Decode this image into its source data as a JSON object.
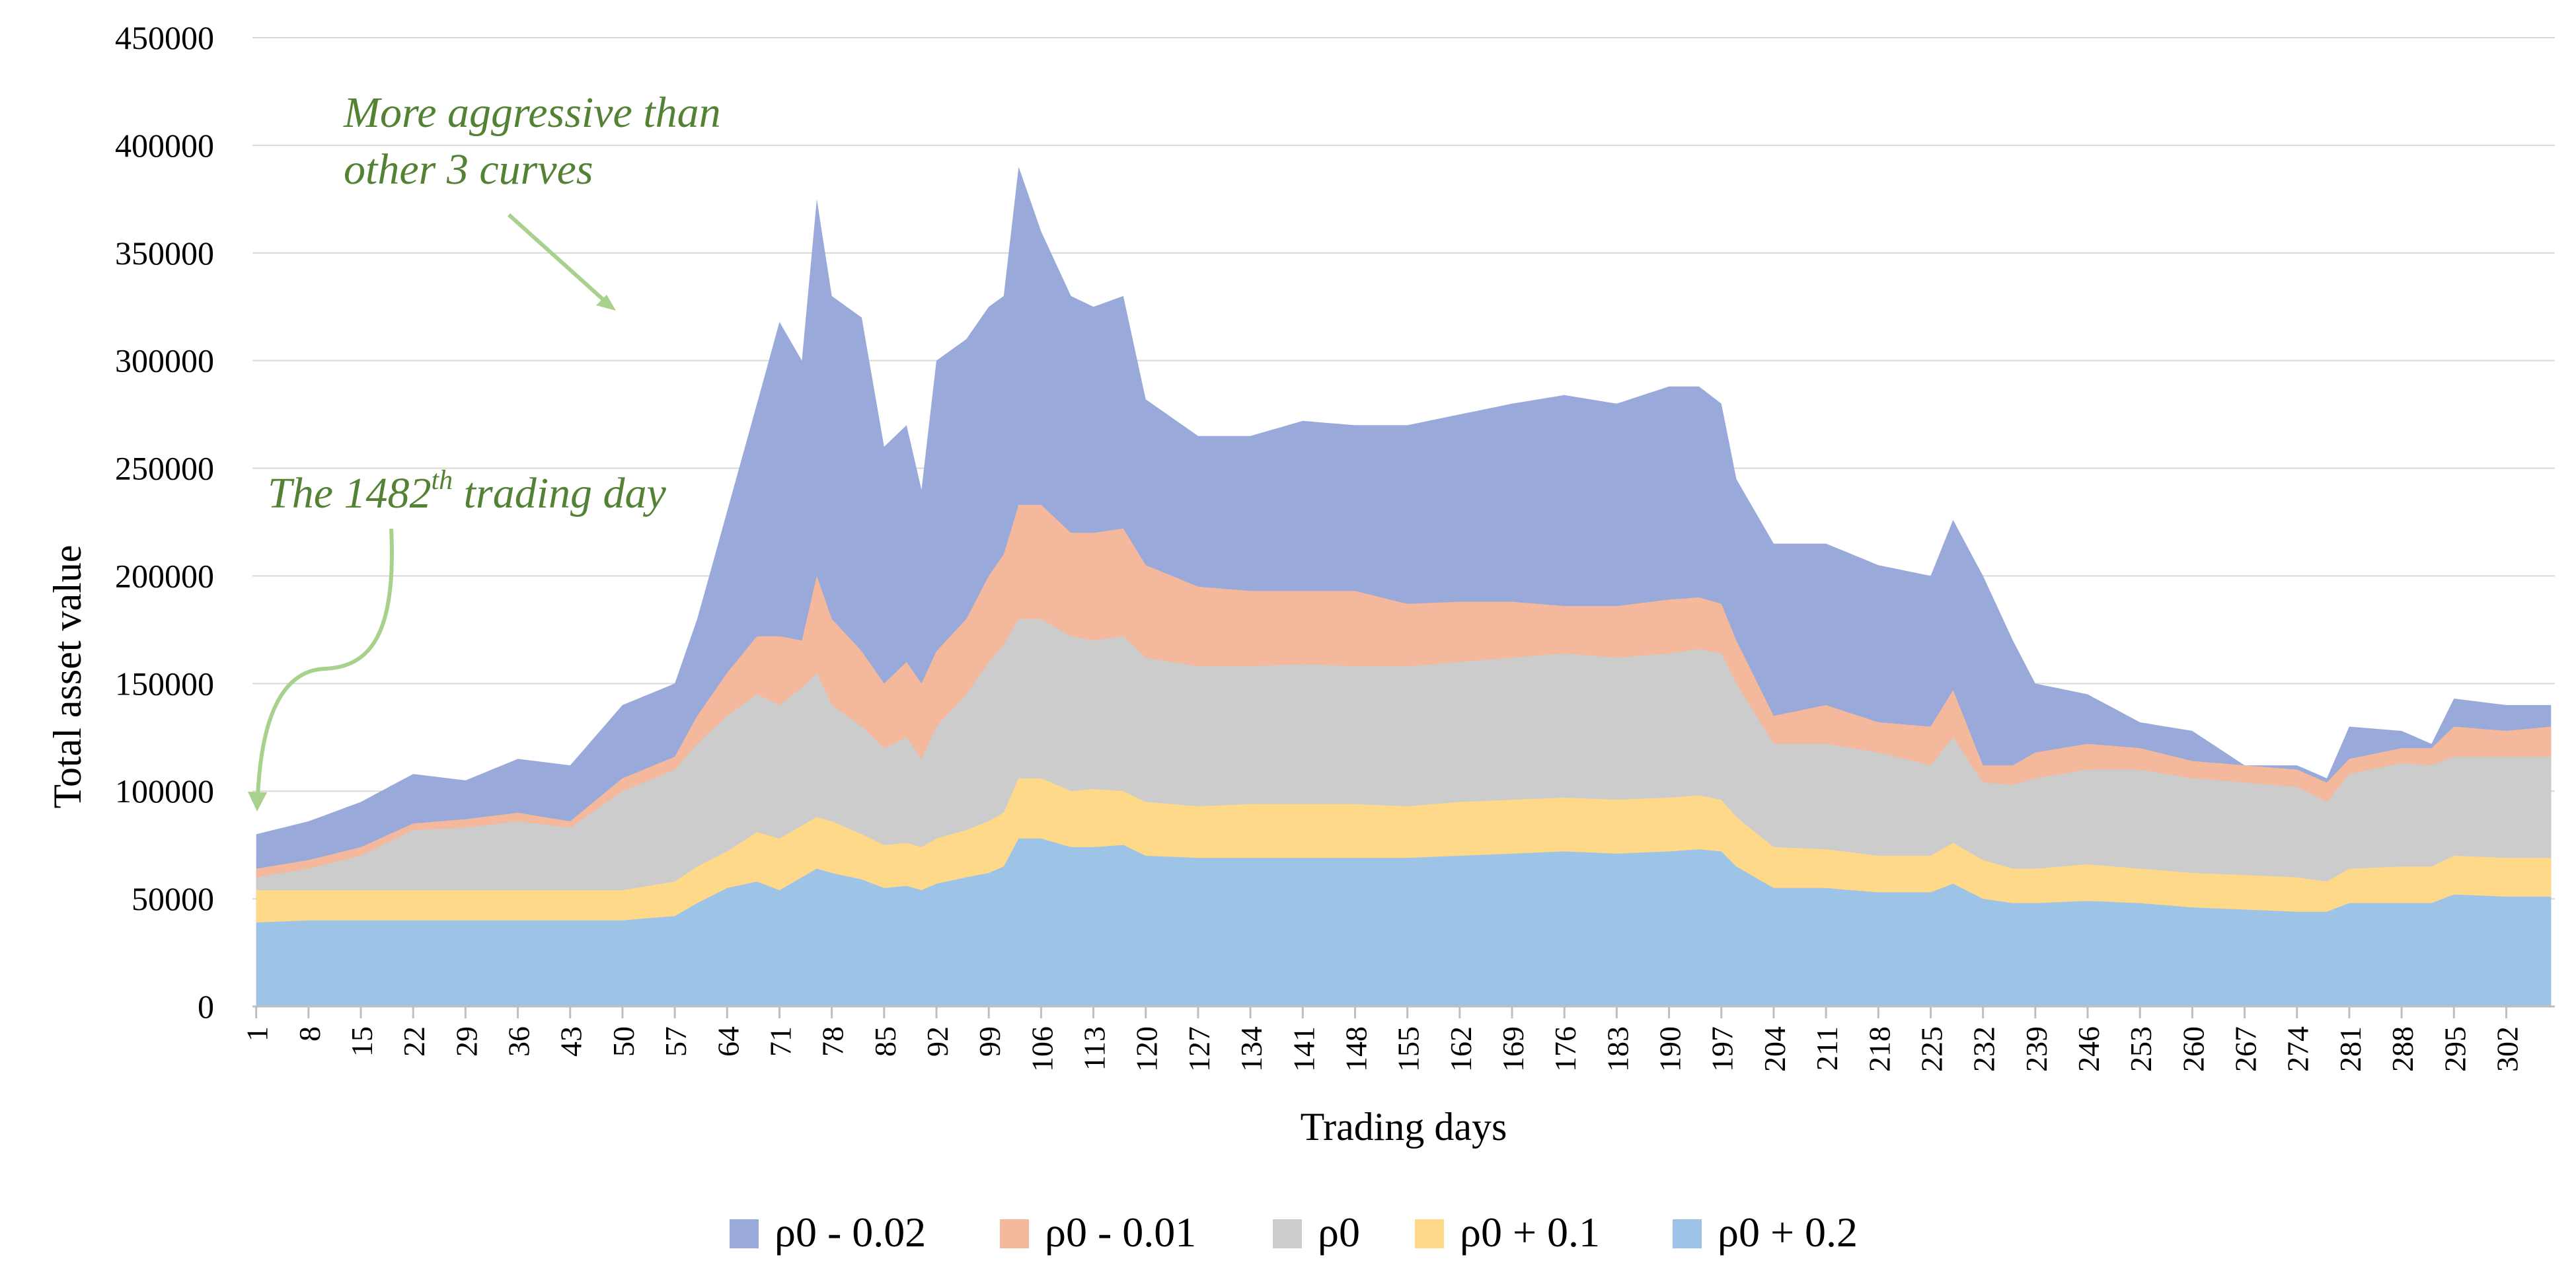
{
  "chart_data": {
    "type": "area",
    "stacked": true,
    "xlabel": "Trading days",
    "ylabel": "Total asset value",
    "ylim": [
      0,
      450000
    ],
    "yticks": [
      0,
      50000,
      100000,
      150000,
      200000,
      250000,
      300000,
      350000,
      400000,
      450000
    ],
    "grid": true,
    "legend_position": "bottom",
    "x_count": 308,
    "xticks": [
      1,
      8,
      15,
      22,
      29,
      36,
      43,
      50,
      57,
      64,
      71,
      78,
      85,
      92,
      99,
      106,
      113,
      120,
      127,
      134,
      141,
      148,
      155,
      162,
      169,
      176,
      183,
      190,
      197,
      204,
      211,
      218,
      225,
      232,
      239,
      246,
      253,
      260,
      267,
      274,
      281,
      288,
      295,
      302
    ],
    "keypoints": [
      1,
      8,
      15,
      22,
      29,
      36,
      43,
      50,
      57,
      60,
      64,
      68,
      71,
      74,
      76,
      78,
      82,
      85,
      88,
      90,
      92,
      96,
      99,
      101,
      103,
      106,
      110,
      113,
      117,
      120,
      127,
      134,
      141,
      148,
      155,
      162,
      169,
      176,
      183,
      190,
      194,
      197,
      199,
      204,
      211,
      218,
      225,
      228,
      232,
      236,
      239,
      246,
      253,
      260,
      267,
      274,
      278,
      281,
      288,
      292,
      295,
      302,
      308
    ],
    "series": [
      {
        "name": "ρ0 + 0.2",
        "color": "#9dc3e6",
        "totals": [
          39000,
          40000,
          40000,
          40000,
          40000,
          40000,
          40000,
          40000,
          42000,
          48000,
          55000,
          58000,
          54000,
          60000,
          64000,
          62000,
          59000,
          55000,
          56000,
          54000,
          57000,
          60000,
          62000,
          65000,
          78000,
          78000,
          74000,
          74000,
          75000,
          70000,
          69000,
          69000,
          69000,
          69000,
          69000,
          70000,
          71000,
          72000,
          71000,
          72000,
          73000,
          72000,
          65000,
          55000,
          55000,
          53000,
          53000,
          57000,
          50000,
          48000,
          48000,
          49000,
          48000,
          46000,
          45000,
          44000,
          44000,
          48000,
          48000,
          48000,
          52000,
          51000,
          51000
        ]
      },
      {
        "name": "ρ0 + 0.1",
        "color": "#ffd98a",
        "totals": [
          54000,
          54000,
          54000,
          54000,
          54000,
          54000,
          54000,
          54000,
          58000,
          65000,
          72000,
          81000,
          78000,
          84000,
          88000,
          86000,
          80000,
          75000,
          76000,
          74000,
          78000,
          82000,
          86000,
          90000,
          106000,
          106000,
          100000,
          101000,
          100000,
          95000,
          93000,
          94000,
          94000,
          94000,
          93000,
          95000,
          96000,
          97000,
          96000,
          97000,
          98000,
          96000,
          88000,
          74000,
          73000,
          70000,
          70000,
          76000,
          68000,
          64000,
          64000,
          66000,
          64000,
          62000,
          61000,
          60000,
          58000,
          64000,
          65000,
          65000,
          70000,
          69000,
          69000
        ]
      },
      {
        "name": "ρ0",
        "color": "#cccccc",
        "totals": [
          60000,
          64000,
          70000,
          82000,
          83000,
          86000,
          83000,
          100000,
          110000,
          122000,
          135000,
          145000,
          140000,
          148000,
          155000,
          140000,
          130000,
          120000,
          125000,
          115000,
          130000,
          145000,
          160000,
          168000,
          180000,
          180000,
          172000,
          170000,
          172000,
          162000,
          158000,
          158000,
          159000,
          158000,
          158000,
          160000,
          162000,
          164000,
          162000,
          164000,
          166000,
          164000,
          150000,
          122000,
          122000,
          118000,
          112000,
          125000,
          104000,
          103000,
          106000,
          110000,
          110000,
          106000,
          104000,
          102000,
          95000,
          108000,
          113000,
          112000,
          116000,
          116000,
          116000
        ]
      },
      {
        "name": "ρ0 - 0.01",
        "color": "#f4b89d",
        "totals": [
          64000,
          68000,
          74000,
          85000,
          87000,
          90000,
          86000,
          106000,
          116000,
          135000,
          155000,
          172000,
          172000,
          170000,
          200000,
          180000,
          165000,
          150000,
          160000,
          150000,
          165000,
          180000,
          200000,
          210000,
          233000,
          233000,
          220000,
          220000,
          222000,
          205000,
          195000,
          193000,
          193000,
          193000,
          187000,
          188000,
          188000,
          186000,
          186000,
          189000,
          190000,
          187000,
          170000,
          135000,
          140000,
          132000,
          130000,
          147000,
          112000,
          112000,
          118000,
          122000,
          120000,
          114000,
          112000,
          110000,
          104000,
          115000,
          120000,
          120000,
          130000,
          128000,
          130000
        ]
      },
      {
        "name": "ρ0 - 0.02",
        "color": "#98a9da",
        "totals": [
          80000,
          86000,
          95000,
          108000,
          105000,
          115000,
          112000,
          140000,
          150000,
          180000,
          230000,
          280000,
          318000,
          300000,
          375000,
          330000,
          320000,
          260000,
          270000,
          240000,
          300000,
          310000,
          325000,
          330000,
          390000,
          360000,
          330000,
          325000,
          330000,
          282000,
          265000,
          265000,
          272000,
          270000,
          270000,
          275000,
          280000,
          284000,
          280000,
          288000,
          288000,
          280000,
          245000,
          215000,
          215000,
          205000,
          200000,
          226000,
          200000,
          170000,
          150000,
          145000,
          132000,
          128000,
          112000,
          112000,
          106000,
          130000,
          128000,
          122000,
          143000,
          140000,
          140000
        ]
      }
    ],
    "annotations": {
      "aggressive": [
        "More aggressive than",
        "other 3 curves"
      ],
      "day_prefix": "The 1482",
      "day_sup": "th",
      "day_suffix": " trading day"
    }
  }
}
